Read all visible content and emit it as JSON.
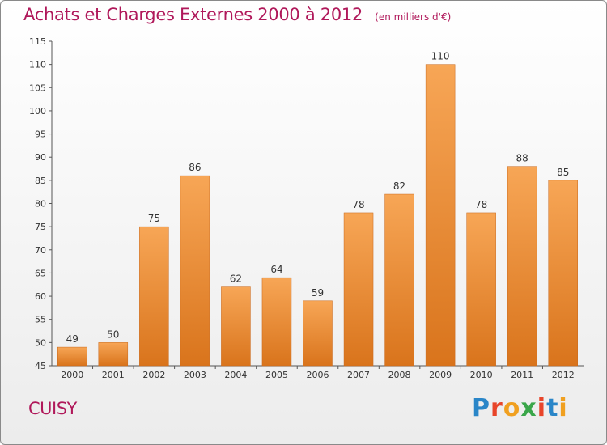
{
  "chart_data": {
    "type": "bar",
    "title": "Achats et Charges Externes 2000 à 2012",
    "subtitle": "(en milliers d'€)",
    "categories": [
      "2000",
      "2001",
      "2002",
      "2003",
      "2004",
      "2005",
      "2006",
      "2007",
      "2008",
      "2009",
      "2010",
      "2011",
      "2012"
    ],
    "values": [
      49,
      50,
      75,
      86,
      62,
      64,
      59,
      78,
      82,
      110,
      78,
      88,
      85
    ],
    "ylim": [
      45,
      115
    ],
    "yticks": [
      45,
      50,
      55,
      60,
      65,
      70,
      75,
      80,
      85,
      90,
      95,
      100,
      105,
      110,
      115
    ],
    "grid": false,
    "bar_color_light": "#f7a656",
    "bar_color_dark": "#d9741c"
  },
  "commune": "CUISY",
  "brand": {
    "letters": [
      "P",
      "r",
      "o",
      "x",
      "i",
      "t",
      "i"
    ],
    "colors": [
      "#2a86c8",
      "#e8452a",
      "#f0a020",
      "#3aa64a",
      "#e8452a",
      "#2a86c8",
      "#f0a020"
    ]
  },
  "colors": {
    "title": "#b0185a",
    "frame_border": "#8a8a8a"
  }
}
